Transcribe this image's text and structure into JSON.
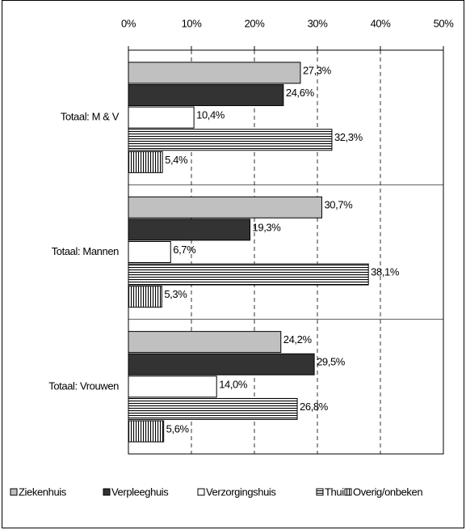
{
  "chart_data": {
    "type": "hbar",
    "categories": [
      "Totaal: M & V",
      "Totaal: Mannen",
      "Totaal: Vrouwen"
    ],
    "series": [
      {
        "name": "Ziekenhuis",
        "color": "#c0c0c0",
        "pattern": "solid",
        "values": [
          27.3,
          30.7,
          24.2
        ],
        "value_labels": [
          "27,3%",
          "30,7%",
          "24,2%"
        ]
      },
      {
        "name": "Verpleeghuis",
        "color": "#333333",
        "pattern": "solid",
        "values": [
          24.6,
          19.3,
          29.5
        ],
        "value_labels": [
          "24,6%",
          "19,3%",
          "29,5%"
        ]
      },
      {
        "name": "Verzorgingshuis",
        "color": "#ffffff",
        "pattern": "solid",
        "values": [
          10.4,
          6.7,
          14.0
        ],
        "value_labels": [
          "10,4%",
          "6,7%",
          "14,0%"
        ]
      },
      {
        "name": "Thuis",
        "color": "#ffffff",
        "pattern": "horizontal",
        "values": [
          32.3,
          38.1,
          26.8
        ],
        "value_labels": [
          "32,3%",
          "38,1%",
          "26,8%"
        ]
      },
      {
        "name": "Overig/onbeken",
        "color": "#ffffff",
        "pattern": "vertical",
        "values": [
          5.4,
          5.3,
          5.6
        ],
        "value_labels": [
          "5,4%",
          "5,3%",
          "5,6%"
        ]
      }
    ],
    "xlim": [
      0,
      50
    ],
    "xticks": [
      {
        "value": 0,
        "label": "0%"
      },
      {
        "value": 10,
        "label": "10%"
      },
      {
        "value": 20,
        "label": "20%"
      },
      {
        "value": 30,
        "label": "30%"
      },
      {
        "value": 40,
        "label": "40%"
      },
      {
        "value": 50,
        "label": "50%"
      }
    ],
    "grid": true,
    "legend": "bottom"
  }
}
